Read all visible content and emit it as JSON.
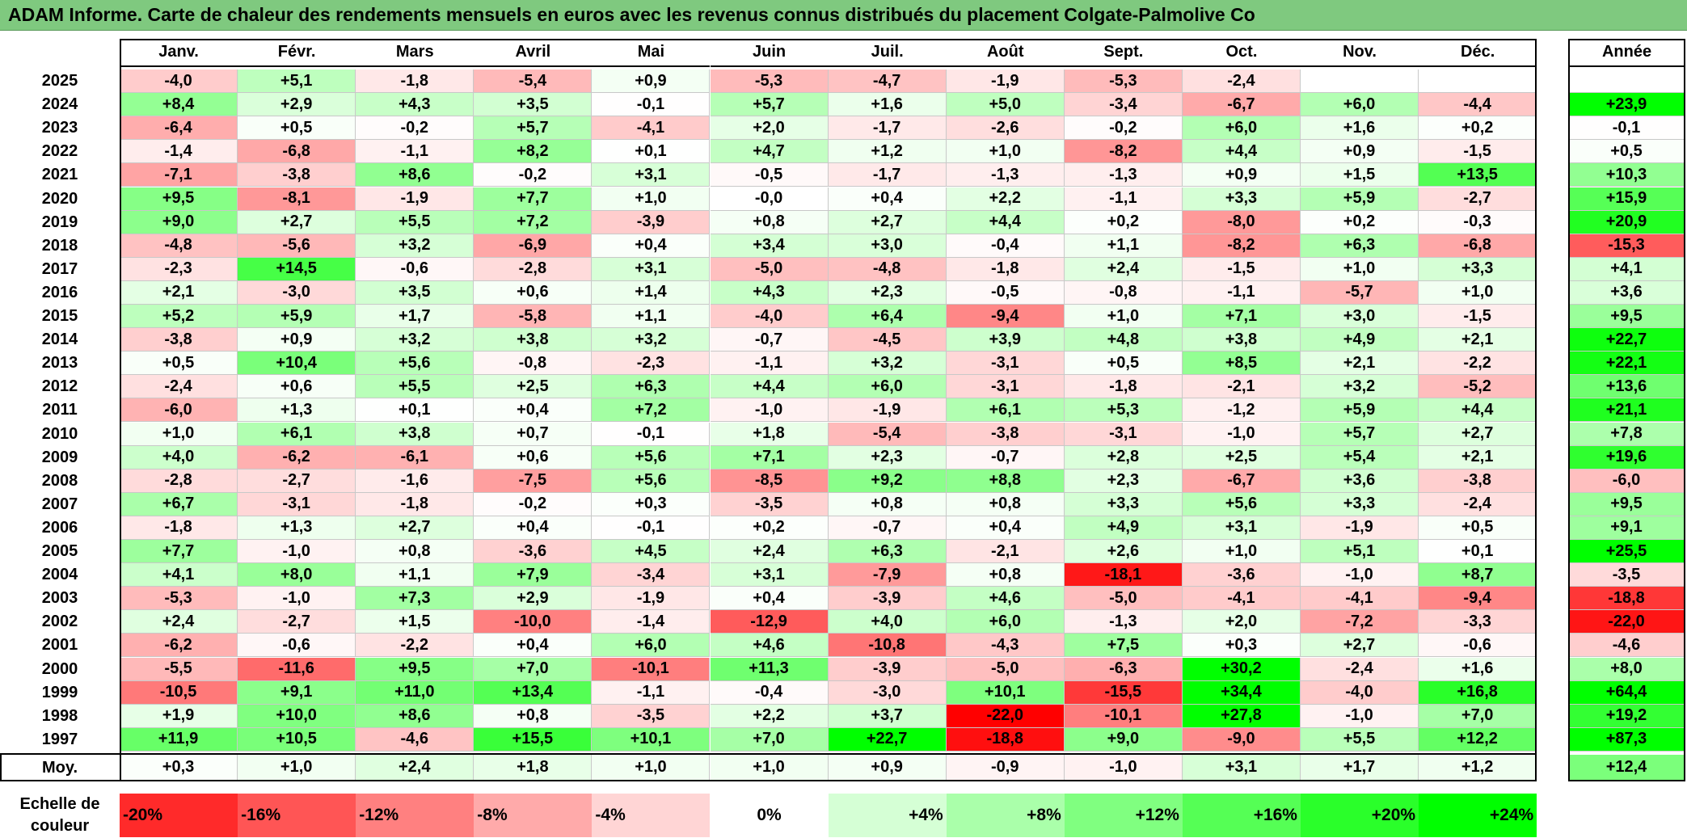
{
  "title": "ADAM Informe. Carte de chaleur des rendements mensuels en euros avec les revenus connus distribués du placement Colgate-Palmolive Co",
  "colors": {
    "title_bg": "#7fc97f",
    "neg_full": "#ff0000",
    "pos_full": "#00ff00",
    "neutral": "#ffffff"
  },
  "chart_data": {
    "type": "heatmap",
    "months": [
      "Janv.",
      "Févr.",
      "Mars",
      "Avril",
      "Mai",
      "Juin",
      "Juil.",
      "Août",
      "Sept.",
      "Oct.",
      "Nov.",
      "Déc."
    ],
    "year_header": "Année",
    "rows": [
      {
        "year": "2025",
        "values": [
          "-4,0",
          "+5,1",
          "-1,8",
          "-5,4",
          "+0,9",
          "-5,3",
          "-4,7",
          "-1,9",
          "-5,3",
          "-2,4",
          "",
          ""
        ],
        "annual": ""
      },
      {
        "year": "2024",
        "values": [
          "+8,4",
          "+2,9",
          "+4,3",
          "+3,5",
          "-0,1",
          "+5,7",
          "+1,6",
          "+5,0",
          "-3,4",
          "-6,7",
          "+6,0",
          "-4,4"
        ],
        "annual": "+23,9"
      },
      {
        "year": "2023",
        "values": [
          "-6,4",
          "+0,5",
          "-0,2",
          "+5,7",
          "-4,1",
          "+2,0",
          "-1,7",
          "-2,6",
          "-0,2",
          "+6,0",
          "+1,6",
          "+0,2"
        ],
        "annual": "-0,1"
      },
      {
        "year": "2022",
        "values": [
          "-1,4",
          "-6,8",
          "-1,1",
          "+8,2",
          "+0,1",
          "+4,7",
          "+1,2",
          "+1,0",
          "-8,2",
          "+4,4",
          "+0,9",
          "-1,5"
        ],
        "annual": "+0,5"
      },
      {
        "year": "2021",
        "values": [
          "-7,1",
          "-3,8",
          "+8,6",
          "-0,2",
          "+3,1",
          "-0,5",
          "-1,7",
          "-1,3",
          "-1,3",
          "+0,9",
          "+1,5",
          "+13,5"
        ],
        "annual": "+10,3"
      },
      {
        "year": "2020",
        "values": [
          "+9,5",
          "-8,1",
          "-1,9",
          "+7,7",
          "+1,0",
          "-0,0",
          "+0,4",
          "+2,2",
          "-1,1",
          "+3,3",
          "+5,9",
          "-2,7"
        ],
        "annual": "+15,9"
      },
      {
        "year": "2019",
        "values": [
          "+9,0",
          "+2,7",
          "+5,5",
          "+7,2",
          "-3,9",
          "+0,8",
          "+2,7",
          "+4,4",
          "+0,2",
          "-8,0",
          "+0,2",
          "-0,3"
        ],
        "annual": "+20,9"
      },
      {
        "year": "2018",
        "values": [
          "-4,8",
          "-5,6",
          "+3,2",
          "-6,9",
          "+0,4",
          "+3,4",
          "+3,0",
          "-0,4",
          "+1,1",
          "-8,2",
          "+6,3",
          "-6,8"
        ],
        "annual": "-15,3"
      },
      {
        "year": "2017",
        "values": [
          "-2,3",
          "+14,5",
          "-0,6",
          "-2,8",
          "+3,1",
          "-5,0",
          "-4,8",
          "-1,8",
          "+2,4",
          "-1,5",
          "+1,0",
          "+3,3"
        ],
        "annual": "+4,1"
      },
      {
        "year": "2016",
        "values": [
          "+2,1",
          "-3,0",
          "+3,5",
          "+0,6",
          "+1,4",
          "+4,3",
          "+2,3",
          "-0,5",
          "-0,8",
          "-1,1",
          "-5,7",
          "+1,0"
        ],
        "annual": "+3,6"
      },
      {
        "year": "2015",
        "values": [
          "+5,2",
          "+5,9",
          "+1,7",
          "-5,8",
          "+1,1",
          "-4,0",
          "+6,4",
          "-9,4",
          "+1,0",
          "+7,1",
          "+3,0",
          "-1,5"
        ],
        "annual": "+9,5"
      },
      {
        "year": "2014",
        "values": [
          "-3,8",
          "+0,9",
          "+3,2",
          "+3,8",
          "+3,2",
          "-0,7",
          "-4,5",
          "+3,9",
          "+4,8",
          "+3,8",
          "+4,9",
          "+2,1"
        ],
        "annual": "+22,7"
      },
      {
        "year": "2013",
        "values": [
          "+0,5",
          "+10,4",
          "+5,6",
          "-0,8",
          "-2,3",
          "-1,1",
          "+3,2",
          "-3,1",
          "+0,5",
          "+8,5",
          "+2,1",
          "-2,2"
        ],
        "annual": "+22,1"
      },
      {
        "year": "2012",
        "values": [
          "-2,4",
          "+0,6",
          "+5,5",
          "+2,5",
          "+6,3",
          "+4,4",
          "+6,0",
          "-3,1",
          "-1,8",
          "-2,1",
          "+3,2",
          "-5,2"
        ],
        "annual": "+13,6"
      },
      {
        "year": "2011",
        "values": [
          "-6,0",
          "+1,3",
          "+0,1",
          "+0,4",
          "+7,2",
          "-1,0",
          "-1,9",
          "+6,1",
          "+5,3",
          "-1,2",
          "+5,9",
          "+4,4"
        ],
        "annual": "+21,1"
      },
      {
        "year": "2010",
        "values": [
          "+1,0",
          "+6,1",
          "+3,8",
          "+0,7",
          "-0,1",
          "+1,8",
          "-5,4",
          "-3,8",
          "-3,1",
          "-1,0",
          "+5,7",
          "+2,7"
        ],
        "annual": "+7,8"
      },
      {
        "year": "2009",
        "values": [
          "+4,0",
          "-6,2",
          "-6,1",
          "+0,6",
          "+5,6",
          "+7,1",
          "+2,3",
          "-0,7",
          "+2,8",
          "+2,5",
          "+5,4",
          "+2,1"
        ],
        "annual": "+19,6"
      },
      {
        "year": "2008",
        "values": [
          "-2,8",
          "-2,7",
          "-1,6",
          "-7,5",
          "+5,6",
          "-8,5",
          "+9,2",
          "+8,8",
          "+2,3",
          "-6,7",
          "+3,6",
          "-3,8"
        ],
        "annual": "-6,0"
      },
      {
        "year": "2007",
        "values": [
          "+6,7",
          "-3,1",
          "-1,8",
          "-0,2",
          "+0,3",
          "-3,5",
          "+0,8",
          "+0,8",
          "+3,3",
          "+5,6",
          "+3,3",
          "-2,4"
        ],
        "annual": "+9,5"
      },
      {
        "year": "2006",
        "values": [
          "-1,8",
          "+1,3",
          "+2,7",
          "+0,4",
          "-0,1",
          "+0,2",
          "-0,7",
          "+0,4",
          "+4,9",
          "+3,1",
          "-1,9",
          "+0,5"
        ],
        "annual": "+9,1"
      },
      {
        "year": "2005",
        "values": [
          "+7,7",
          "-1,0",
          "+0,8",
          "-3,6",
          "+4,5",
          "+2,4",
          "+6,3",
          "-2,1",
          "+2,6",
          "+1,0",
          "+5,1",
          "+0,1"
        ],
        "annual": "+25,5"
      },
      {
        "year": "2004",
        "values": [
          "+4,1",
          "+8,0",
          "+1,1",
          "+7,9",
          "-3,4",
          "+3,1",
          "-7,9",
          "+0,8",
          "-18,1",
          "-3,6",
          "-1,0",
          "+8,7"
        ],
        "annual": "-3,5"
      },
      {
        "year": "2003",
        "values": [
          "-5,3",
          "-1,0",
          "+7,3",
          "+2,9",
          "-1,9",
          "+0,4",
          "-3,9",
          "+4,6",
          "-5,0",
          "-4,1",
          "-4,1",
          "-9,4"
        ],
        "annual": "-18,8"
      },
      {
        "year": "2002",
        "values": [
          "+2,4",
          "-2,7",
          "+1,5",
          "-10,0",
          "-1,4",
          "-12,9",
          "+4,0",
          "+6,0",
          "-1,3",
          "+2,0",
          "-7,2",
          "-3,3"
        ],
        "annual": "-22,0"
      },
      {
        "year": "2001",
        "values": [
          "-6,2",
          "-0,6",
          "-2,2",
          "+0,4",
          "+6,0",
          "+4,6",
          "-10,8",
          "-4,3",
          "+7,5",
          "+0,3",
          "+2,7",
          "-0,6"
        ],
        "annual": "-4,6"
      },
      {
        "year": "2000",
        "values": [
          "-5,5",
          "-11,6",
          "+9,5",
          "+7,0",
          "-10,1",
          "+11,3",
          "-3,9",
          "-5,0",
          "-6,3",
          "+30,2",
          "-2,4",
          "+1,6"
        ],
        "annual": "+8,0"
      },
      {
        "year": "1999",
        "values": [
          "-10,5",
          "+9,1",
          "+11,0",
          "+13,4",
          "-1,1",
          "-0,4",
          "-3,0",
          "+10,1",
          "-15,5",
          "+34,4",
          "-4,0",
          "+16,8"
        ],
        "annual": "+64,4"
      },
      {
        "year": "1998",
        "values": [
          "+1,9",
          "+10,0",
          "+8,6",
          "+0,8",
          "-3,5",
          "+2,2",
          "+3,7",
          "-22,0",
          "-10,1",
          "+27,8",
          "-1,0",
          "+7,0"
        ],
        "annual": "+19,2"
      },
      {
        "year": "1997",
        "values": [
          "+11,9",
          "+10,5",
          "-4,6",
          "+15,5",
          "+10,1",
          "+7,0",
          "+22,7",
          "-18,8",
          "+9,0",
          "-9,0",
          "+5,5",
          "+12,2"
        ],
        "annual": "+87,3"
      }
    ],
    "average": {
      "label": "Moy.",
      "values": [
        "+0,3",
        "+1,0",
        "+2,4",
        "+1,8",
        "+1,0",
        "+1,0",
        "+0,9",
        "-0,9",
        "-1,0",
        "+3,1",
        "+1,7",
        "+1,2"
      ],
      "annual": "+12,4"
    },
    "scale": {
      "label_line1": "Echelle de",
      "label_line2": "couleur",
      "steps": [
        "-20%",
        "-16%",
        "-12%",
        "-8%",
        "-4%",
        "0%",
        "+4%",
        "+8%",
        "+12%",
        "+16%",
        "+20%",
        "+24%"
      ]
    }
  }
}
